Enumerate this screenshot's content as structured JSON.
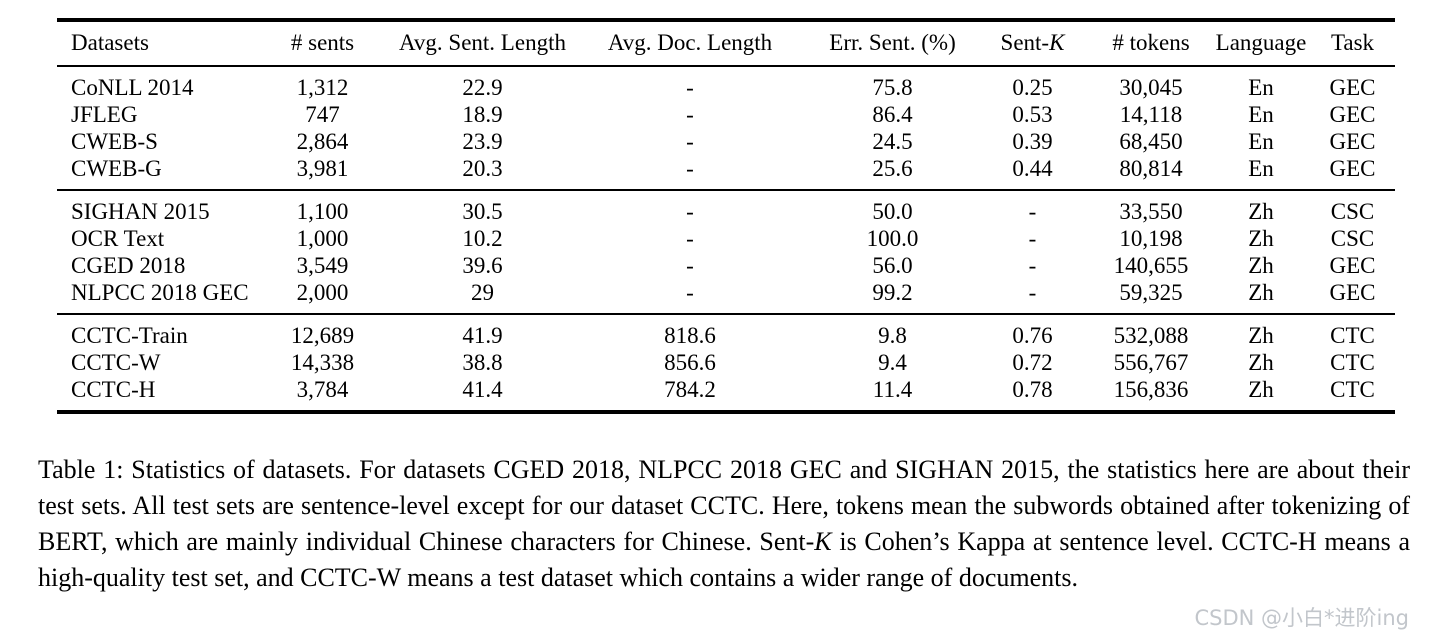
{
  "colors": {
    "background": "#ffffff",
    "text": "#000000",
    "rule": "#000000",
    "watermark": "#c2c6cb"
  },
  "table": {
    "columns": [
      {
        "label": "Datasets",
        "align": "left"
      },
      {
        "label": "# sents"
      },
      {
        "label": "Avg. Sent. Length"
      },
      {
        "label": "Avg. Doc. Length"
      },
      {
        "label": "Err. Sent. (%)"
      },
      {
        "label": "Sent-",
        "italic": "K"
      },
      {
        "label": "# tokens"
      },
      {
        "label": "Language"
      },
      {
        "label": "Task"
      }
    ],
    "groups": [
      {
        "rows": [
          [
            "CoNLL 2014",
            "1,312",
            "22.9",
            "-",
            "75.8",
            "0.25",
            "30,045",
            "En",
            "GEC"
          ],
          [
            "JFLEG",
            "747",
            "18.9",
            "-",
            "86.4",
            "0.53",
            "14,118",
            "En",
            "GEC"
          ],
          [
            "CWEB-S",
            "2,864",
            "23.9",
            "-",
            "24.5",
            "0.39",
            "68,450",
            "En",
            "GEC"
          ],
          [
            "CWEB-G",
            "3,981",
            "20.3",
            "-",
            "25.6",
            "0.44",
            "80,814",
            "En",
            "GEC"
          ]
        ]
      },
      {
        "rows": [
          [
            "SIGHAN 2015",
            "1,100",
            "30.5",
            "-",
            "50.0",
            "-",
            "33,550",
            "Zh",
            "CSC"
          ],
          [
            "OCR Text",
            "1,000",
            "10.2",
            "-",
            "100.0",
            "-",
            "10,198",
            "Zh",
            "CSC"
          ],
          [
            "CGED 2018",
            "3,549",
            "39.6",
            "-",
            "56.0",
            "-",
            "140,655",
            "Zh",
            "GEC"
          ],
          [
            "NLPCC 2018 GEC",
            "2,000",
            "29",
            "-",
            "99.2",
            "-",
            "59,325",
            "Zh",
            "GEC"
          ]
        ]
      },
      {
        "rows": [
          [
            "CCTC-Train",
            "12,689",
            "41.9",
            "818.6",
            "9.8",
            "0.76",
            "532,088",
            "Zh",
            "CTC"
          ],
          [
            "CCTC-W",
            "14,338",
            "38.8",
            "856.6",
            "9.4",
            "0.72",
            "556,767",
            "Zh",
            "CTC"
          ],
          [
            "CCTC-H",
            "3,784",
            "41.4",
            "784.2",
            "11.4",
            "0.78",
            "156,836",
            "Zh",
            "CTC"
          ]
        ]
      }
    ]
  },
  "caption": {
    "part1": "Table 1: Statistics of datasets. For datasets CGED 2018, NLPCC 2018 GEC and SIGHAN 2015, the statistics here are about their test sets. All test sets are sentence-level except for our dataset CCTC. Here, tokens mean the subwords obtained after tokenizing of BERT, which are mainly individual Chinese characters for Chinese. Sent-",
    "italic_k": "K",
    "part2": " is Cohen’s Kappa at sentence level. CCTC-H means a high-quality test set, and CCTC-W means a test dataset which contains a wider range of documents."
  },
  "watermark": {
    "text": "CSDN @小白*进阶ing"
  }
}
